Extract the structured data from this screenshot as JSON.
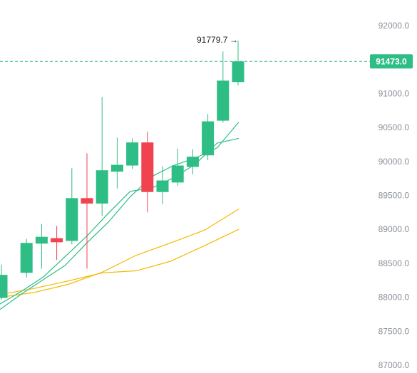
{
  "chart_data": {
    "type": "candlestick",
    "title": "",
    "xlabel": "",
    "ylabel": "",
    "ylim": [
      87000,
      92300
    ],
    "y_ticks": [
      "92000.0",
      "91500.0",
      "91000.0",
      "90500.0",
      "90000.0",
      "89500.0",
      "89000.0",
      "88500.0",
      "88000.0",
      "87500.0",
      "87000.0"
    ],
    "y_tick_values": [
      92000,
      91500,
      91000,
      90500,
      90000,
      89500,
      89000,
      88500,
      88000,
      87500,
      87000
    ],
    "grid": false,
    "colors": {
      "up": "#2ebd85",
      "down": "#f0434f",
      "ma_fast": "#2ebd85",
      "ma_slow": "#f5b800",
      "price_line": "#2ebd85"
    },
    "candles": [
      {
        "o": 87990,
        "h": 88480,
        "l": 87960,
        "c": 88330
      },
      {
        "o": 88360,
        "h": 88860,
        "l": 88290,
        "c": 88800
      },
      {
        "o": 88790,
        "h": 89080,
        "l": 88420,
        "c": 88890
      },
      {
        "o": 88870,
        "h": 89050,
        "l": 88550,
        "c": 88810
      },
      {
        "o": 88830,
        "h": 89900,
        "l": 88780,
        "c": 89460
      },
      {
        "o": 89460,
        "h": 90120,
        "l": 88420,
        "c": 89380
      },
      {
        "o": 89380,
        "h": 90950,
        "l": 89200,
        "c": 89870
      },
      {
        "o": 89850,
        "h": 90350,
        "l": 89600,
        "c": 89950
      },
      {
        "o": 89940,
        "h": 90340,
        "l": 89890,
        "c": 90280
      },
      {
        "o": 90280,
        "h": 90440,
        "l": 89250,
        "c": 89550
      },
      {
        "o": 89550,
        "h": 89930,
        "l": 89370,
        "c": 89720
      },
      {
        "o": 89690,
        "h": 90190,
        "l": 89640,
        "c": 89940
      },
      {
        "o": 89920,
        "h": 90180,
        "l": 89810,
        "c": 90070
      },
      {
        "o": 90090,
        "h": 90700,
        "l": 90020,
        "c": 90590
      },
      {
        "o": 90600,
        "h": 91620,
        "l": 90570,
        "c": 91190
      },
      {
        "o": 91170,
        "h": 91779.7,
        "l": 91120,
        "c": 91473
      }
    ],
    "ma_fast": [
      [
        87820,
        88050,
        88260,
        88470,
        88800,
        89110,
        89480,
        89780,
        89940,
        90050,
        90200,
        90580
      ],
      [
        87900,
        88090,
        88300,
        88600,
        88900,
        89240,
        89560,
        89610,
        89760,
        89960,
        90270,
        90340
      ]
    ],
    "ma_slow": [
      [
        88000,
        88070,
        88190,
        88370,
        88620,
        88800,
        88990,
        89300
      ],
      [
        88040,
        88130,
        88240,
        88360,
        88390,
        88530,
        88760,
        89000
      ]
    ],
    "annotations": {
      "high_label": "91779.7",
      "arrow": "→",
      "last_price": "91473.0",
      "last_price_value": 91473
    }
  }
}
